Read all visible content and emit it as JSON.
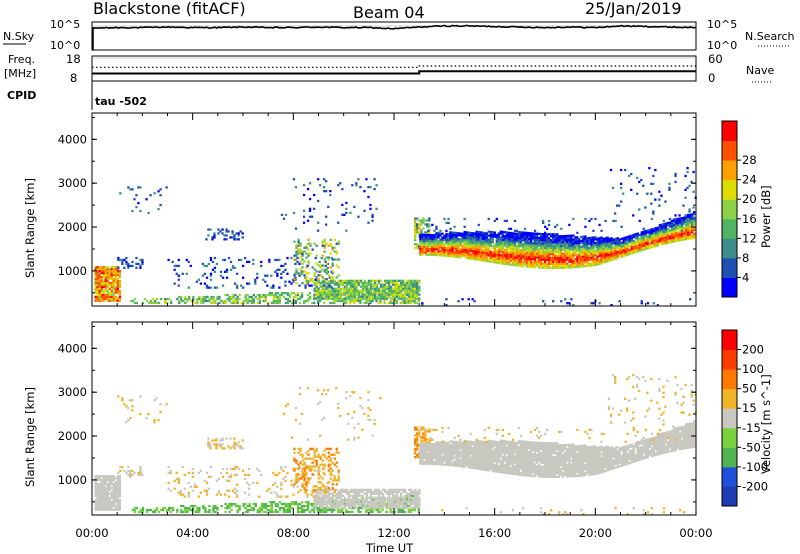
{
  "header": {
    "station": "Blackstone (fitACF)",
    "beam": "Beam 04",
    "date": "25/Jan/2019"
  },
  "noise_panel": {
    "left_label": "N.Sky",
    "right_label": "N.Search",
    "tick_top": "10^5",
    "tick_bottom": "10^0"
  },
  "freq_panel": {
    "left_label_line1": "Freq.",
    "left_label_line2": "[MHz]",
    "left_tick_top": "18",
    "left_tick_bottom": "8",
    "right_label": "Nave",
    "right_tick_top": "60",
    "right_tick_bottom": "0",
    "cpid_label": "CPID",
    "cpid_value": "tau -502"
  },
  "x_axis": {
    "label": "Time UT",
    "ticks": [
      "00:00",
      "04:00",
      "08:00",
      "12:00",
      "16:00",
      "20:00",
      "00:00"
    ]
  },
  "colors": {
    "power": [
      "#0000ff",
      "#1e50b4",
      "#3c8c8c",
      "#50b464",
      "#8cd246",
      "#dcdc00",
      "#ffa000",
      "#ff5000",
      "#ff0000"
    ],
    "velocity": [
      "#1e3cb4",
      "#1e50dc",
      "#50b450",
      "#78d23c",
      "#c8c8c0",
      "#f0b428",
      "#ff7800",
      "#ff3c00",
      "#ff0000"
    ],
    "ground_scatter": "#c8c8c0"
  },
  "chart_data": [
    {
      "type": "line",
      "title": "N.Sky",
      "x": [
        0,
        1,
        2,
        3,
        4,
        5,
        6,
        7,
        8,
        9,
        10,
        11,
        12,
        13,
        14,
        15,
        16,
        17,
        18,
        19,
        20,
        21,
        22,
        23,
        24
      ],
      "series": [
        {
          "name": "N.Sky",
          "values": [
            3.9,
            4.0,
            4.0,
            4.1,
            4.0,
            4.0,
            4.1,
            4.0,
            4.0,
            4.1,
            4.0,
            4.0,
            3.8,
            4.1,
            4.3,
            4.3,
            4.2,
            4.1,
            4.0,
            4.1,
            4.0,
            4.3,
            4.2,
            4.1,
            4.0
          ]
        }
      ],
      "ylim": [
        0,
        5
      ]
    },
    {
      "type": "line",
      "title": "Freq. / Nave",
      "x": [
        0,
        13,
        13,
        24
      ],
      "series": [
        {
          "name": "Freq.",
          "values": [
            11.0,
            11.0,
            11.9,
            11.9
          ]
        },
        {
          "name": "Nave",
          "values": [
            33,
            33,
            36,
            36
          ]
        }
      ],
      "ylim": [
        8,
        18
      ]
    },
    {
      "type": "heatmap",
      "title": "Power [dB]",
      "ylabel": "Slant Range [km]",
      "xlabel": "Time UT",
      "ylim": [
        200,
        4600
      ],
      "yticks": [
        1000,
        2000,
        3000,
        4000
      ],
      "colorbar_label": "Power [dB]",
      "colorbar_ticks": [
        "4",
        "8",
        "12",
        "16",
        "20",
        "24",
        "28"
      ]
    },
    {
      "type": "heatmap",
      "title": "Velocity [m s^-1]",
      "ylabel": "Slant Range [km]",
      "xlabel": "Time UT",
      "ylim": [
        200,
        4600
      ],
      "yticks": [
        1000,
        2000,
        3000,
        4000
      ],
      "colorbar_label": "Velocity [m s^-1]",
      "colorbar_ticks": [
        "200",
        "100",
        "50",
        "15",
        "-15",
        "-50",
        "-100",
        "-200"
      ]
    }
  ]
}
